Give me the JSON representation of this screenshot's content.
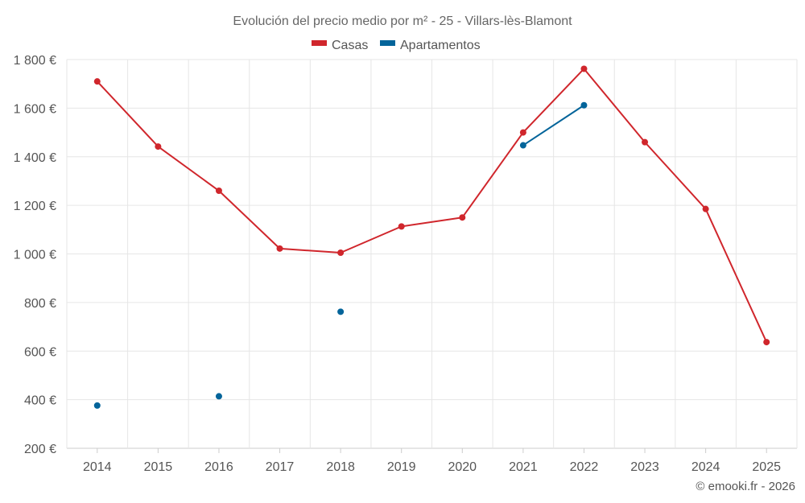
{
  "chart_data": {
    "type": "line",
    "title": "Evolución del precio medio por m² - 25 - Villars-lès-Blamont",
    "categories": [
      "2014",
      "2015",
      "2016",
      "2017",
      "2018",
      "2019",
      "2020",
      "2021",
      "2022",
      "2023",
      "2024",
      "2025"
    ],
    "ylim": [
      200,
      1800
    ],
    "y_ticks": [
      200,
      400,
      600,
      800,
      1000,
      1200,
      1400,
      1600,
      1800
    ],
    "y_tick_labels": [
      "200 €",
      "400 €",
      "600 €",
      "800 €",
      "1 000 €",
      "1 200 €",
      "1 400 €",
      "1 600 €",
      "1 800 €"
    ],
    "grid": true,
    "legend_position": "top-center",
    "series": [
      {
        "name": "Casas",
        "color": "#d0262c",
        "values": [
          1710,
          1442,
          1260,
          1022,
          1005,
          1113,
          1150,
          1500,
          1762,
          1460,
          1185,
          637
        ]
      },
      {
        "name": "Apartamentos",
        "color": "#03649a",
        "values": [
          376,
          null,
          414,
          null,
          762,
          null,
          null,
          1447,
          1612,
          null,
          null,
          null
        ]
      }
    ],
    "credit": "© emooki.fr - 2026"
  }
}
